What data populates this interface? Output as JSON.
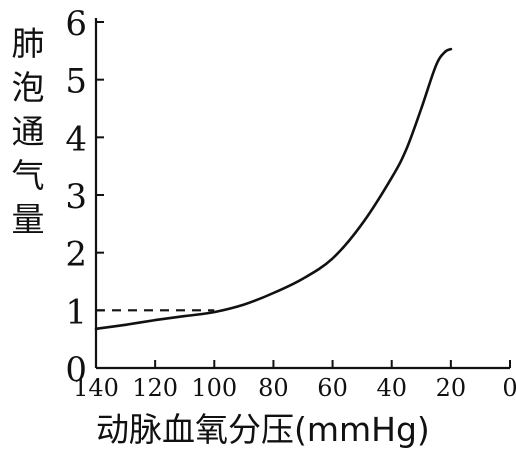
{
  "chart_data": {
    "type": "line",
    "title": "",
    "xlabel": "动脉血氧分压(mmHg)",
    "ylabel": "肺泡通气量",
    "xlim": [
      140,
      0
    ],
    "ylim": [
      0,
      6
    ],
    "x_ticks": [
      "140",
      "120",
      "100",
      "80",
      "60",
      "40",
      "20",
      "0"
    ],
    "y_ticks": [
      "0",
      "1",
      "2",
      "3",
      "4",
      "5",
      "6"
    ],
    "grid": false,
    "series": [
      {
        "style": "solid",
        "points": [
          [
            140,
            0.68
          ],
          [
            130,
            0.75
          ],
          [
            120,
            0.83
          ],
          [
            110,
            0.9
          ],
          [
            100,
            0.97
          ],
          [
            90,
            1.1
          ],
          [
            80,
            1.3
          ],
          [
            70,
            1.55
          ],
          [
            60,
            1.9
          ],
          [
            50,
            2.5
          ],
          [
            40,
            3.3
          ],
          [
            35,
            3.8
          ],
          [
            30,
            4.5
          ],
          [
            25,
            5.25
          ],
          [
            22,
            5.48
          ],
          [
            20,
            5.53
          ]
        ]
      },
      {
        "style": "dashed",
        "points": [
          [
            140,
            1.0
          ],
          [
            100,
            1.0
          ]
        ]
      }
    ]
  }
}
